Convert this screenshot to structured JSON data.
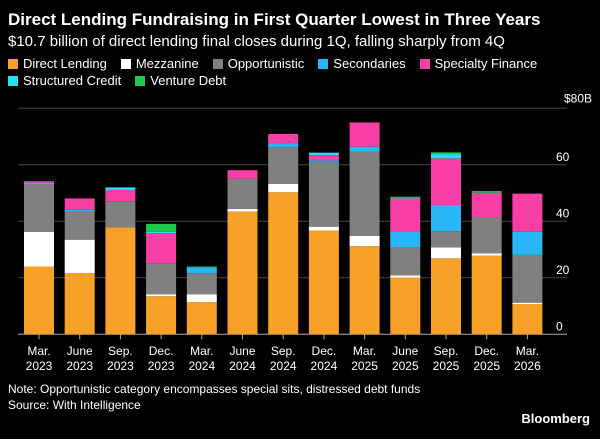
{
  "chart_data": {
    "type": "bar",
    "stacked": true,
    "title": "Direct Lending Fundraising in First Quarter Lowest in Three Years",
    "subtitle": "$10.7 billion of direct lending final closes during 1Q, falling sharply from 4Q",
    "categories": [
      [
        "Mar.",
        "2023"
      ],
      [
        "June",
        "2023"
      ],
      [
        "Sep.",
        "2023"
      ],
      [
        "Dec.",
        "2023"
      ],
      [
        "Mar.",
        "2024"
      ],
      [
        "June",
        "2024"
      ],
      [
        "Sep.",
        "2024"
      ],
      [
        "Dec.",
        "2024"
      ],
      [
        "Mar.",
        "2025"
      ],
      [
        "June",
        "2025"
      ],
      [
        "Sep.",
        "2025"
      ],
      [
        "Dec.",
        "2025"
      ],
      [
        "Mar.",
        "2026"
      ]
    ],
    "ylim": [
      0,
      80
    ],
    "yticks": [
      "0",
      "20",
      "40",
      "60",
      "$80B"
    ],
    "grid": true,
    "legend_placement": "top",
    "series": [
      {
        "name": "Direct Lending",
        "color": "#f7a128",
        "values": [
          24,
          21.7,
          37.8,
          13.5,
          11.4,
          43.4,
          50.3,
          36.7,
          31.2,
          20.1,
          26.9,
          27.8,
          10.7
        ]
      },
      {
        "name": "Mezzanine",
        "color": "#ffffff",
        "values": [
          12.3,
          11.8,
          0,
          0.7,
          2.8,
          1.0,
          3.0,
          1.4,
          3.6,
          0.8,
          3.9,
          0.9,
          0.5
        ]
      },
      {
        "name": "Opportunistic",
        "color": "#808080",
        "values": [
          16.9,
          9.9,
          9.3,
          10.8,
          7.4,
          10.7,
          12.9,
          23,
          29.9,
          10,
          5.7,
          12.8,
          16.9
        ]
      },
      {
        "name": "Secondaries",
        "color": "#29b6f6",
        "values": [
          0.5,
          0.7,
          0,
          0,
          2.1,
          0,
          1.4,
          0.5,
          1.7,
          5.3,
          9.3,
          0,
          8.2
        ]
      },
      {
        "name": "Specialty Finance",
        "color": "#f73fa5",
        "values": [
          0.5,
          4.0,
          4.0,
          10.8,
          0,
          3.0,
          3.3,
          1.8,
          8.6,
          11.9,
          16.5,
          8.6,
          13.5
        ]
      },
      {
        "name": "Structured Credit",
        "color": "#25e0f5",
        "values": [
          0,
          0,
          0.9,
          0.5,
          0,
          0,
          0,
          0.9,
          0,
          0.2,
          1.5,
          0,
          0
        ]
      },
      {
        "name": "Venture Debt",
        "color": "#1fc94a",
        "values": [
          0,
          0,
          0,
          2.8,
          0.3,
          0,
          0,
          0,
          0,
          0.4,
          0.6,
          0.6,
          0
        ]
      }
    ]
  },
  "note": "Note: Opportunistic category encompasses special sits, distressed debt funds",
  "source": "Source: With Intelligence",
  "brand": "Bloomberg"
}
